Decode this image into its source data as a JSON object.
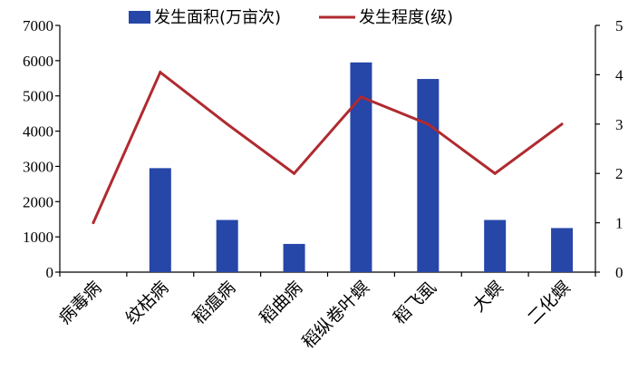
{
  "chart_data": {
    "type": "bar",
    "categories": [
      "病毒病",
      "纹枯病",
      "稻瘟病",
      "稻曲病",
      "稻纵卷叶螟",
      "稻飞虱",
      "大螟",
      "二化螟"
    ],
    "series": [
      {
        "name": "发生面积(万亩次)",
        "type": "bar",
        "axis": "left",
        "color": "#2646a8",
        "values": [
          0,
          2950,
          1480,
          800,
          5950,
          5480,
          1480,
          1250
        ]
      },
      {
        "name": "发生程度(级)",
        "type": "line",
        "axis": "right",
        "color": "#b02a30",
        "values": [
          1,
          4.05,
          3.0,
          2.0,
          3.55,
          3.0,
          2.0,
          3.0
        ]
      }
    ],
    "y_left": {
      "min": 0,
      "max": 7000,
      "ticks": [
        "0",
        "1000",
        "2000",
        "3000",
        "4000",
        "5000",
        "6000",
        "7000"
      ]
    },
    "y_right": {
      "min": 0,
      "max": 5,
      "ticks": [
        "0",
        "1",
        "2",
        "3",
        "4",
        "5"
      ]
    },
    "legend": {
      "placement": "top-center"
    },
    "grid": false
  }
}
